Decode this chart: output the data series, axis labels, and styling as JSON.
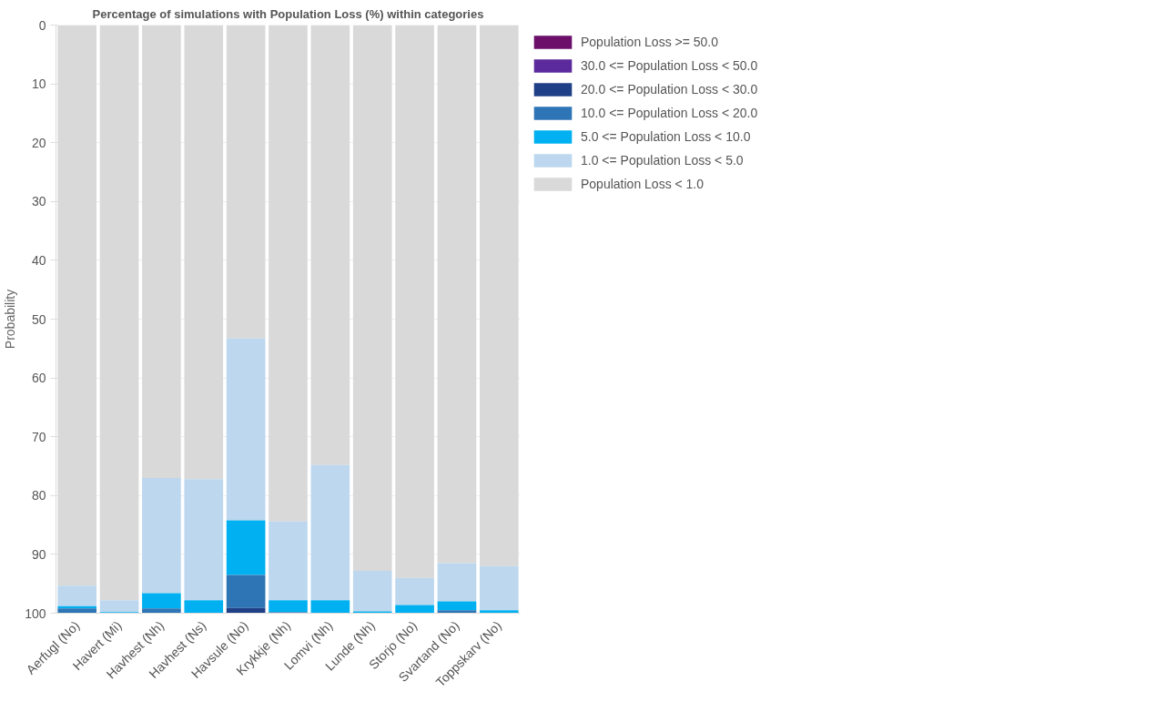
{
  "chart_data": {
    "type": "bar",
    "title": "Percentage of simulations with Population Loss (%) within categories",
    "ylabel": "Probability",
    "categories": [
      "Aerfugl (No)",
      "Havert (Mi)",
      "Havhest (Nh)",
      "Havhest (Ns)",
      "Havsule (No)",
      "Krykkje (Nh)",
      "Lomvi (Nh)",
      "Lunde (Nh)",
      "Storjo (No)",
      "Svartand (No)",
      "Toppskarv (No)"
    ],
    "stacked": true,
    "ylim": [
      100,
      0
    ],
    "yticks": [
      0,
      10,
      20,
      30,
      40,
      50,
      60,
      70,
      80,
      90,
      100
    ],
    "grid": "y",
    "legend": "top right",
    "series": [
      {
        "name": "Population Loss < 1.0",
        "color": "#d9d9d9",
        "values": [
          95.3,
          97.8,
          77.0,
          77.2,
          53.3,
          84.4,
          74.8,
          92.8,
          94.0,
          91.5,
          92.0
        ]
      },
      {
        "name": "1.0 <= Population Loss < 5.0",
        "color": "#bdd7ee",
        "values": [
          3.5,
          2.0,
          19.6,
          20.6,
          30.9,
          13.4,
          23.0,
          6.9,
          4.6,
          6.5,
          7.5
        ]
      },
      {
        "name": "5.0 <= Population Loss < 10.0",
        "color": "#00b0f0",
        "values": [
          0.4,
          0.2,
          2.6,
          2.2,
          9.3,
          2.0,
          2.2,
          0.3,
          1.4,
          1.5,
          0.5
        ]
      },
      {
        "name": "10.0 <= Population Loss < 20.0",
        "color": "#2e75b6",
        "values": [
          0.8,
          0,
          0.8,
          0,
          5.6,
          0.2,
          0,
          0,
          0,
          0.5,
          0
        ]
      },
      {
        "name": "20.0 <= Population Loss < 30.0",
        "color": "#1f3f87",
        "values": [
          0,
          0,
          0,
          0,
          0.9,
          0,
          0,
          0,
          0,
          0,
          0
        ]
      },
      {
        "name": "30.0 <= Population Loss < 50.0",
        "color": "#5b2a9c",
        "values": [
          0,
          0,
          0,
          0,
          0,
          0,
          0,
          0,
          0,
          0,
          0
        ]
      },
      {
        "name": "Population Loss >= 50.0",
        "color": "#6b0f6b",
        "values": [
          0,
          0,
          0,
          0,
          0,
          0,
          0,
          0,
          0,
          0,
          0
        ]
      }
    ]
  }
}
